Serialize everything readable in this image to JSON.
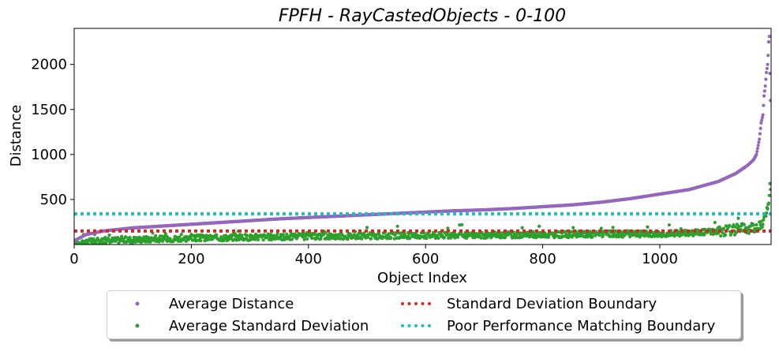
{
  "chart_data": {
    "type": "scatter",
    "title": "FPFH - RayCastedObjects - 0-100",
    "xlabel": "Object Index",
    "ylabel": "Distance",
    "xlim": [
      0,
      1190
    ],
    "ylim": [
      0,
      2400
    ],
    "xticks": [
      "0",
      "200",
      "400",
      "600",
      "800",
      "1000"
    ],
    "yticks": [
      "500",
      "1000",
      "1500",
      "2000"
    ],
    "grid": false,
    "legend_position": "bottom-center",
    "series": [
      {
        "name": "Average Distance",
        "type": "scatter",
        "color": "#9467bd",
        "x": [
          0,
          20,
          50,
          100,
          150,
          200,
          250,
          300,
          350,
          400,
          450,
          500,
          550,
          600,
          650,
          700,
          750,
          800,
          850,
          900,
          950,
          1000,
          1050,
          1100,
          1130,
          1150,
          1160,
          1165,
          1170,
          1173,
          1176,
          1178,
          1180,
          1182,
          1184,
          1185,
          1186,
          1187,
          1188,
          1189
        ],
        "y": [
          40,
          110,
          150,
          185,
          205,
          225,
          245,
          265,
          285,
          300,
          315,
          330,
          345,
          360,
          375,
          385,
          400,
          420,
          440,
          470,
          510,
          560,
          610,
          700,
          790,
          880,
          940,
          1000,
          1170,
          1350,
          1440,
          1650,
          1760,
          1910,
          2000,
          2100,
          2250,
          2310,
          1900,
          1600
        ]
      },
      {
        "name": "Average Standard Deviation",
        "type": "scatter",
        "color": "#2ca02c",
        "x": [
          0,
          50,
          100,
          200,
          300,
          400,
          500,
          600,
          700,
          800,
          900,
          1000,
          1050,
          1100,
          1150,
          1175,
          1180,
          1185,
          1188
        ],
        "y": [
          20,
          40,
          55,
          70,
          80,
          90,
          95,
          100,
          105,
          110,
          115,
          120,
          130,
          150,
          180,
          220,
          300,
          420,
          640
        ]
      },
      {
        "name": "Standard Deviation Boundary",
        "type": "hline",
        "color": "#d62728",
        "y": 150
      },
      {
        "name": "Poor Performance Matching Boundary",
        "type": "hline",
        "color": "#17becf",
        "y": 340
      }
    ]
  }
}
